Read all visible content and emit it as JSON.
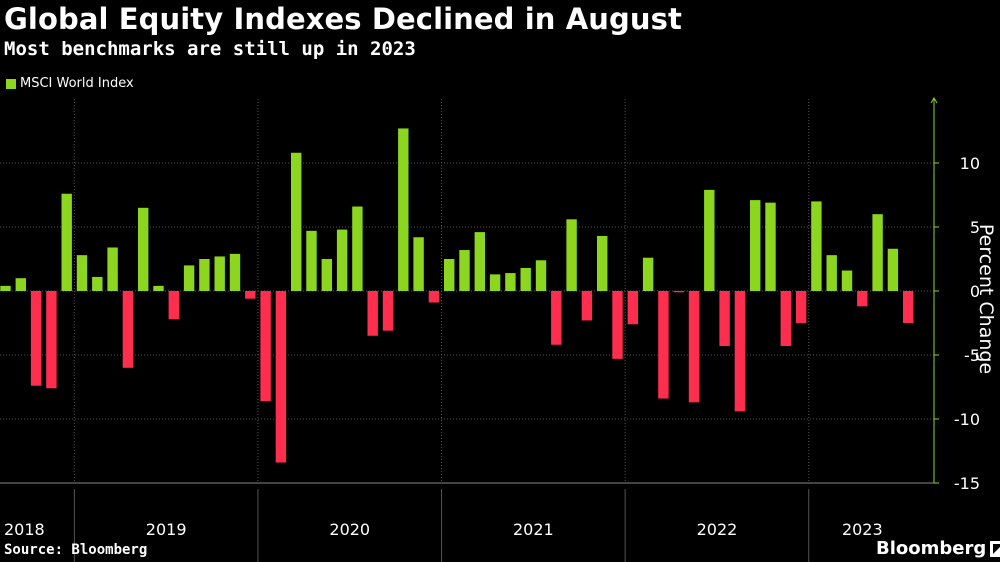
{
  "chart_data": {
    "type": "bar",
    "title": "Global Equity Indexes Declined in August",
    "subtitle": "Most benchmarks are still up in 2023",
    "ylabel": "Percent Change",
    "xlabel": "",
    "ylim": [
      -15,
      14
    ],
    "yticks": [
      10,
      5,
      0,
      -5,
      -10,
      -15
    ],
    "grid": true,
    "legend_position": "top-left",
    "series": [
      {
        "name": "MSCI World Index",
        "values": [
          0.4,
          1.0,
          -7.4,
          -7.6,
          7.6,
          2.8,
          1.1,
          3.4,
          -6.0,
          6.5,
          0.4,
          -2.2,
          2.0,
          2.5,
          2.7,
          2.9,
          -0.6,
          -8.6,
          -13.4,
          10.8,
          4.7,
          2.5,
          4.8,
          6.6,
          -3.5,
          -3.1,
          12.7,
          4.2,
          -0.9,
          2.5,
          3.2,
          4.6,
          1.3,
          1.4,
          1.8,
          2.4,
          -4.2,
          5.6,
          -2.3,
          4.3,
          -5.3,
          -2.6,
          2.6,
          -8.4,
          -0.1,
          -8.7,
          7.9,
          -4.3,
          -9.4,
          7.1,
          6.9,
          -4.3,
          -2.5,
          7.0,
          2.8,
          1.6,
          -1.2,
          6.0,
          3.3,
          -2.5
        ]
      }
    ],
    "year_labels": [
      "2018",
      "2019",
      "2020",
      "2021",
      "2022",
      "2023"
    ],
    "colors": {
      "positive": "#8cd61f",
      "negative": "#ff2e4f",
      "grid": "#555555",
      "axis": "#8cd61f",
      "legend": "#8cd61f"
    }
  },
  "footer": {
    "source": "Source: Bloomberg",
    "brand": "Bloomberg"
  }
}
